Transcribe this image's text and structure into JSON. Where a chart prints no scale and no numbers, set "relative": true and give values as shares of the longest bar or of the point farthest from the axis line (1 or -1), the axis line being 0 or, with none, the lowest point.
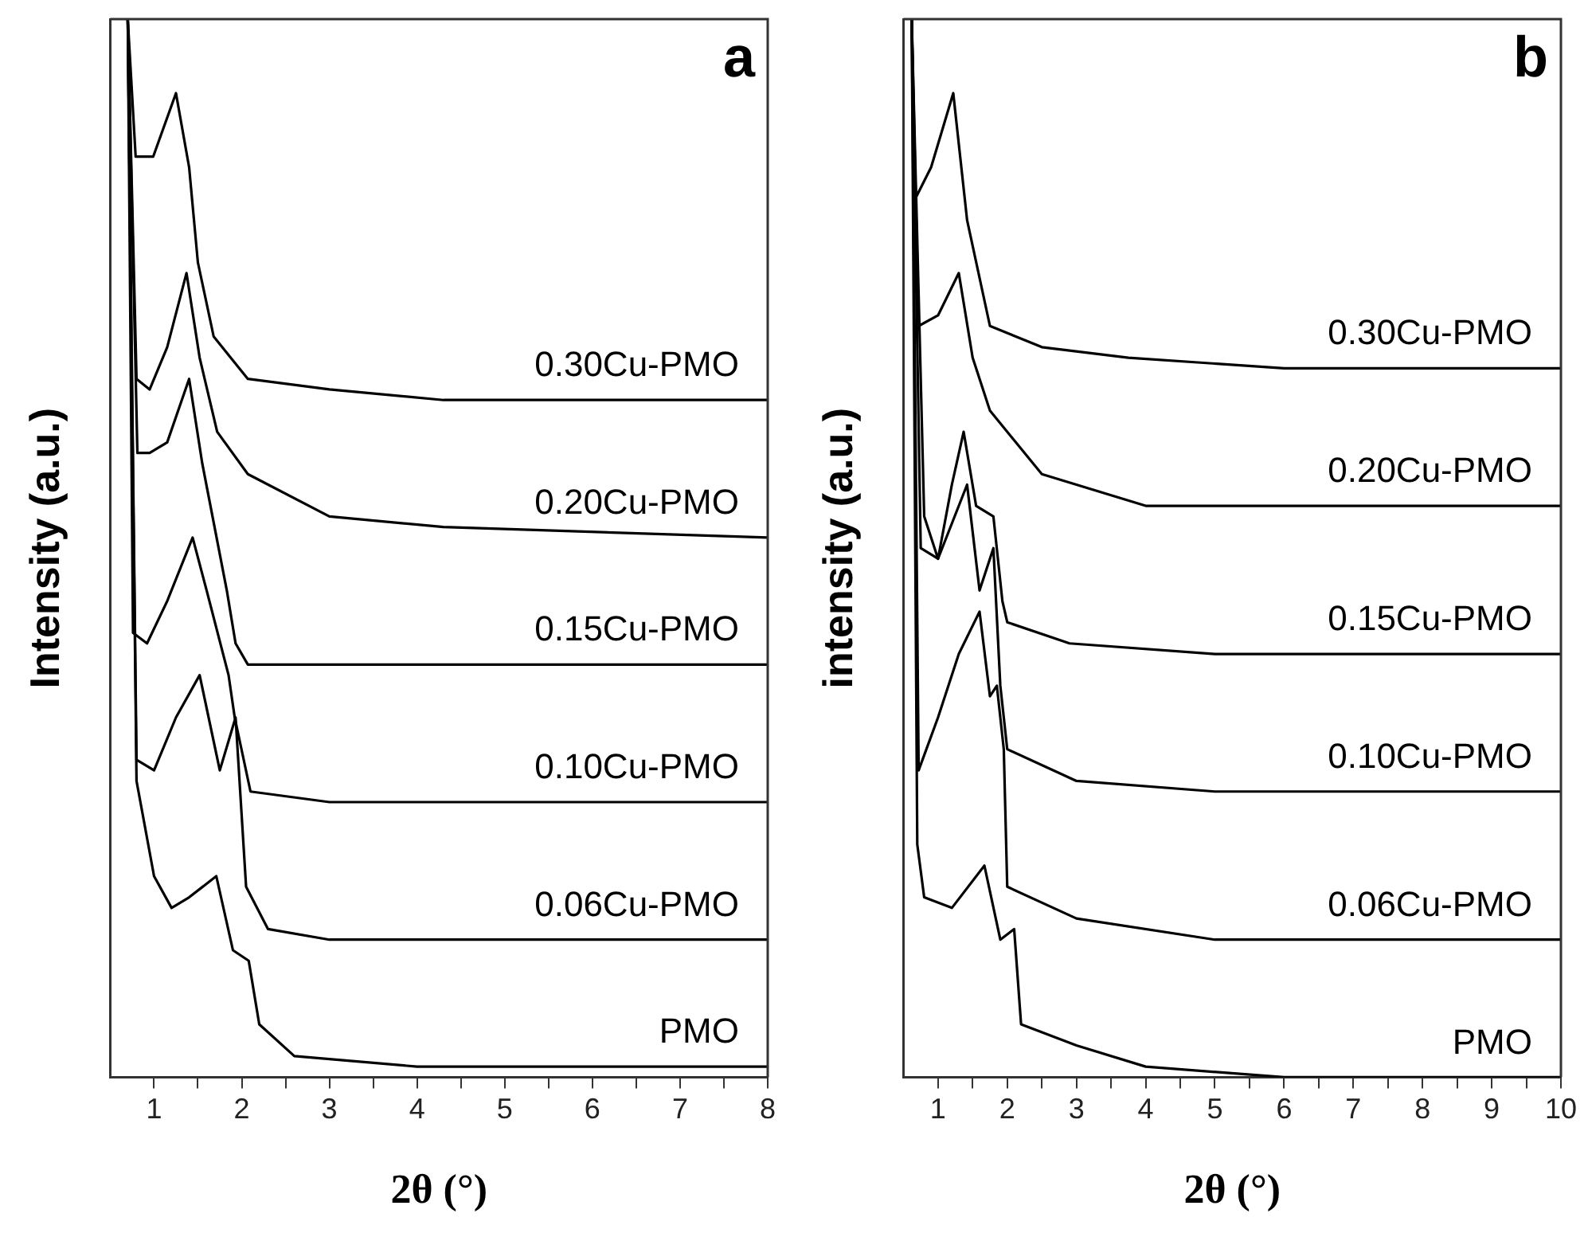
{
  "chart_data": [
    {
      "type": "line",
      "xlabel": "2θ (°)",
      "ylabel": "Intensity (a.u.)",
      "relative": true,
      "marker": "none",
      "annotations": [
        "a"
      ],
      "xlim": [
        0.5,
        8
      ],
      "xticks": [
        1,
        {
          "value": 1.5,
          "label": null
        },
        2,
        {
          "value": 2.5,
          "label": null
        },
        3,
        {
          "value": 3.5,
          "label": null
        },
        4,
        {
          "value": 4.5,
          "label": null
        },
        5,
        {
          "value": 5.5,
          "label": null
        },
        6,
        {
          "value": 6.5,
          "label": null
        },
        7,
        {
          "value": 7.5,
          "label": null
        },
        8
      ],
      "series": [
        {
          "name": "0.30Cu-PMO",
          "color": "#000000",
          "x": [
            0.7,
            0.79,
            0.99,
            1.25,
            1.4,
            1.5,
            1.68,
            2.07,
            3,
            4.3,
            8
          ],
          "values": [
            1,
            0.87,
            0.87,
            0.93,
            0.86,
            0.77,
            0.7,
            0.66,
            0.65,
            0.64,
            0.64
          ]
        },
        {
          "name": "0.20Cu-PMO",
          "color": "#000000",
          "x": [
            0.7,
            0.8,
            0.95,
            1.15,
            1.37,
            1.52,
            1.72,
            2.07,
            3,
            4.3,
            8
          ],
          "values": [
            1,
            0.66,
            0.65,
            0.69,
            0.76,
            0.68,
            0.61,
            0.57,
            0.53,
            0.52,
            0.51
          ]
        },
        {
          "name": "0.15Cu-PMO",
          "color": "#000000",
          "x": [
            0.7,
            0.81,
            0.95,
            1.15,
            1.4,
            1.55,
            1.83,
            1.93,
            2.07,
            3,
            8
          ],
          "values": [
            1,
            0.59,
            0.59,
            0.6,
            0.66,
            0.58,
            0.46,
            0.41,
            0.39,
            0.39,
            0.39
          ]
        },
        {
          "name": "0.10Cu-PMO",
          "color": "#000000",
          "x": [
            0.7,
            0.76,
            0.92,
            1.15,
            1.44,
            1.6,
            1.85,
            1.92,
            2.1,
            3,
            8
          ],
          "values": [
            1,
            0.42,
            0.41,
            0.45,
            0.51,
            0.46,
            0.38,
            0.34,
            0.27,
            0.26,
            0.26
          ]
        },
        {
          "name": "0.06Cu-PMO",
          "color": "#000000",
          "x": [
            0.7,
            0.8,
            1,
            1.25,
            1.52,
            1.75,
            1.93,
            2.05,
            2.3,
            3,
            8
          ],
          "values": [
            1,
            0.3,
            0.29,
            0.34,
            0.38,
            0.29,
            0.34,
            0.18,
            0.14,
            0.13,
            0.13
          ]
        },
        {
          "name": "PMO",
          "color": "#000000",
          "x": [
            0.7,
            0.8,
            1,
            1.2,
            1.4,
            1.71,
            1.9,
            2.08,
            2.2,
            2.6,
            4,
            8
          ],
          "values": [
            1,
            0.28,
            0.19,
            0.16,
            0.17,
            0.19,
            0.12,
            0.11,
            0.05,
            0.02,
            0.01,
            0.01
          ]
        }
      ]
    },
    {
      "type": "line",
      "xlabel": "2θ (°)",
      "ylabel": "intensity (a.u.)",
      "relative": true,
      "marker": "none",
      "annotations": [
        "b"
      ],
      "xlim": [
        0.5,
        10
      ],
      "xticks": [
        1,
        {
          "value": 1.5,
          "label": null
        },
        2,
        {
          "value": 2.5,
          "label": null
        },
        3,
        {
          "value": 3.5,
          "label": null
        },
        4,
        {
          "value": 4.5,
          "label": null
        },
        5,
        {
          "value": 5.5,
          "label": null
        },
        6,
        {
          "value": 6.5,
          "label": null
        },
        7,
        {
          "value": 7.5,
          "label": null
        },
        8,
        {
          "value": 8.5,
          "label": null
        },
        9,
        {
          "value": 9.5,
          "label": null
        },
        10
      ],
      "series": [
        {
          "name": "0.30Cu-PMO",
          "color": "#000000",
          "x": [
            0.62,
            0.67,
            0.9,
            1.22,
            1.42,
            1.75,
            2.5,
            3.75,
            6,
            10
          ],
          "values": [
            1,
            0.83,
            0.86,
            0.93,
            0.81,
            0.71,
            0.69,
            0.68,
            0.67,
            0.67
          ]
        },
        {
          "name": "0.20Cu-PMO",
          "color": "#000000",
          "x": [
            0.62,
            0.72,
            1,
            1.3,
            1.5,
            1.75,
            2.5,
            4,
            10
          ],
          "values": [
            1,
            0.71,
            0.72,
            0.76,
            0.68,
            0.63,
            0.57,
            0.54,
            0.54
          ]
        },
        {
          "name": "0.15Cu-PMO",
          "color": "#000000",
          "x": [
            0.62,
            0.8,
            1,
            1.2,
            1.37,
            1.55,
            1.8,
            1.93,
            2,
            2.9,
            5,
            10
          ],
          "values": [
            1,
            0.53,
            0.49,
            0.56,
            0.61,
            0.54,
            0.53,
            0.45,
            0.43,
            0.41,
            0.4,
            0.4
          ]
        },
        {
          "name": "0.10Cu-PMO",
          "color": "#000000",
          "x": [
            0.62,
            0.75,
            1,
            1.42,
            1.6,
            1.8,
            1.9,
            2,
            3,
            5,
            10
          ],
          "values": [
            1,
            0.5,
            0.49,
            0.56,
            0.46,
            0.5,
            0.37,
            0.31,
            0.28,
            0.27,
            0.27
          ]
        },
        {
          "name": "0.06Cu-PMO",
          "color": "#000000",
          "x": [
            0.62,
            0.72,
            1,
            1.3,
            1.6,
            1.75,
            1.85,
            1.95,
            2,
            3,
            5,
            10
          ],
          "values": [
            1,
            0.29,
            0.34,
            0.4,
            0.44,
            0.36,
            0.37,
            0.31,
            0.18,
            0.15,
            0.13,
            0.13
          ]
        },
        {
          "name": "PMO",
          "color": "#000000",
          "x": [
            0.62,
            0.7,
            0.8,
            1.2,
            1.67,
            1.9,
            2.1,
            2.2,
            3,
            4,
            6,
            10
          ],
          "values": [
            1,
            0.22,
            0.17,
            0.16,
            0.2,
            0.13,
            0.14,
            0.05,
            0.03,
            0.01,
            0,
            0
          ]
        }
      ]
    }
  ]
}
